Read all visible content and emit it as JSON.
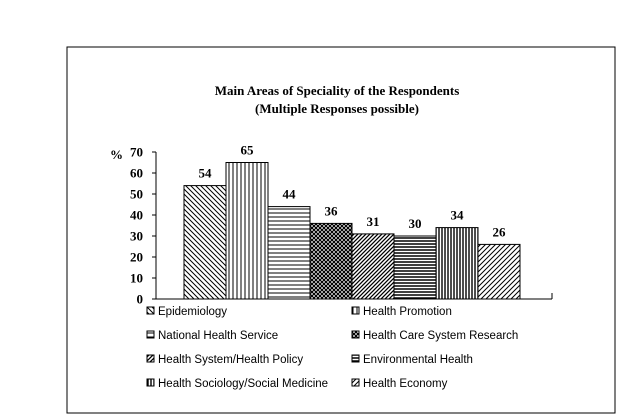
{
  "chart_data": {
    "type": "bar",
    "title": "Main Areas of Speciality of the Respondents",
    "subtitle": "(Multiple Responses possible)",
    "ylabel": "%",
    "xlabel": "",
    "ylim": [
      0,
      70
    ],
    "yticks": [
      "0",
      "10",
      "20",
      "30",
      "40",
      "50",
      "60",
      "70"
    ],
    "grid": false,
    "legend_position": "bottom",
    "categories": [
      "Epidemiology",
      "Health Promotion",
      "National Health Service",
      "Health Care System Research",
      "Health System/Health Policy",
      "Environmental Health",
      "Health Sociology/Social Medicine",
      "Health Economy"
    ],
    "values": [
      54,
      65,
      44,
      36,
      31,
      30,
      34,
      26
    ],
    "value_labels": [
      "54",
      "65",
      "44",
      "36",
      "31",
      "30",
      "34",
      "26"
    ],
    "patterns": [
      "diag-down",
      "vertical",
      "horizontal",
      "cross-dense",
      "diag-up-dense",
      "horizontal-dense",
      "vertical-dense",
      "diag-up"
    ]
  }
}
